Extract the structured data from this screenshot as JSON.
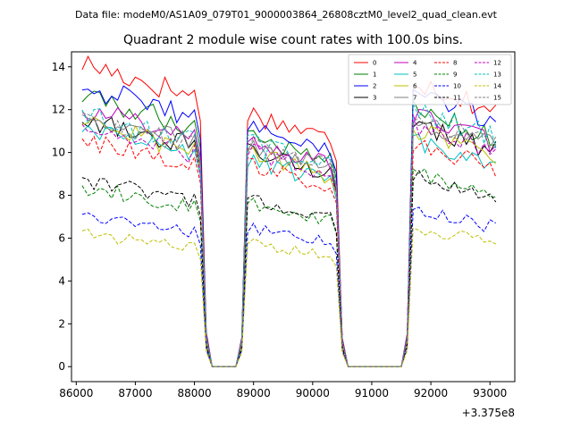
{
  "header_text": "Data file: modeM0/AS1A09_079T01_9000003864_26808cztM0_level2_quad_clean.evt",
  "chart_data": {
    "type": "line",
    "title": "Quadrant 2 module wise count rates with 100.0s bins.",
    "xlabel": "",
    "ylabel": "",
    "x_offset_label": "+3.375e8",
    "xlim": [
      85920,
      93420
    ],
    "ylim": [
      -0.7,
      14.7
    ],
    "xticks": [
      86000,
      87000,
      88000,
      89000,
      90000,
      91000,
      92000,
      93000
    ],
    "xtick_labels": [
      "86000",
      "87000",
      "88000",
      "89000",
      "90000",
      "91000",
      "92000",
      "93000"
    ],
    "yticks": [
      0,
      2,
      4,
      6,
      8,
      10,
      12,
      14
    ],
    "ytick_labels": [
      "0",
      "2",
      "4",
      "6",
      "8",
      "10",
      "12",
      "14"
    ],
    "legend_position": "top-right",
    "segments": [
      {
        "start": 86100,
        "end": 88100
      },
      {
        "start": 88900,
        "end": 90400
      },
      {
        "start": 91700,
        "end": 93100
      }
    ],
    "series": [
      {
        "name": "0",
        "color": "#ff0000",
        "style": "solid",
        "seg_levels": [
          13.5,
          11.3,
          12.8
        ]
      },
      {
        "name": "1",
        "color": "#008000",
        "style": "solid",
        "seg_levels": [
          12.0,
          10.3,
          11.5
        ]
      },
      {
        "name": "2",
        "color": "#0000ff",
        "style": "solid",
        "seg_levels": [
          12.5,
          10.7,
          12.2
        ]
      },
      {
        "name": "3",
        "color": "#000000",
        "style": "solid",
        "seg_levels": [
          11.0,
          9.6,
          10.8
        ]
      },
      {
        "name": "4",
        "color": "#bf00bf",
        "style": "solid",
        "seg_levels": [
          11.5,
          10.0,
          11.2
        ]
      },
      {
        "name": "5",
        "color": "#00bfbf",
        "style": "solid",
        "seg_levels": [
          10.5,
          9.2,
          10.0
        ]
      },
      {
        "name": "6",
        "color": "#bfbf00",
        "style": "solid",
        "seg_levels": [
          10.8,
          9.5,
          10.5
        ]
      },
      {
        "name": "7",
        "color": "#808080",
        "style": "solid",
        "seg_levels": [
          11.2,
          9.8,
          11.0
        ]
      },
      {
        "name": "8",
        "color": "#ff0000",
        "style": "dashed",
        "seg_levels": [
          10.1,
          9.0,
          10.0
        ]
      },
      {
        "name": "9",
        "color": "#008000",
        "style": "dashed",
        "seg_levels": [
          8.0,
          7.3,
          8.6
        ]
      },
      {
        "name": "10",
        "color": "#0000ff",
        "style": "dashed",
        "seg_levels": [
          6.7,
          6.2,
          7.0
        ]
      },
      {
        "name": "11",
        "color": "#000000",
        "style": "dashed",
        "seg_levels": [
          8.3,
          7.4,
          8.5
        ]
      },
      {
        "name": "12",
        "color": "#bf00bf",
        "style": "dashed",
        "seg_levels": [
          10.6,
          9.6,
          10.8
        ]
      },
      {
        "name": "13",
        "color": "#00bfbf",
        "style": "dashed",
        "seg_levels": [
          11.2,
          10.0,
          11.5
        ]
      },
      {
        "name": "14",
        "color": "#bfbf00",
        "style": "dashed",
        "seg_levels": [
          5.9,
          5.5,
          6.2
        ]
      },
      {
        "name": "15",
        "color": "#808080",
        "style": "dashed",
        "seg_levels": [
          11.0,
          9.9,
          11.2
        ]
      }
    ]
  }
}
